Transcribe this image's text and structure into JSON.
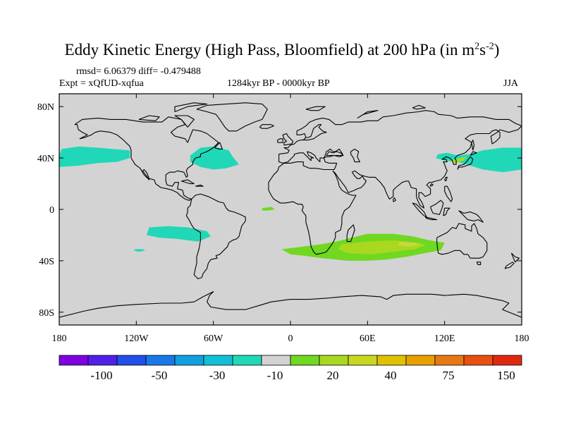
{
  "title": {
    "main": "Eddy Kinetic Energy (High Pass, Bloomfield) at 200 hPa (in m",
    "sup1": "2",
    "mid": "s",
    "sup2": "-2",
    "close": ")"
  },
  "stats": {
    "rmsd_diff": "rmsd= 6.06379 diff= -0.479488",
    "expt": "Expt = xQfUD-xqfua",
    "period": "1284kyr BP - 0000kyr BP",
    "season": "JJA"
  },
  "chart_data": {
    "type": "heatmap",
    "projection": "cylindrical-equidistant",
    "xlim": [
      -180,
      180
    ],
    "ylim": [
      -90,
      90
    ],
    "x_ticks": [
      {
        "value": -180,
        "label": "180"
      },
      {
        "value": -120,
        "label": "120W"
      },
      {
        "value": -60,
        "label": "60W"
      },
      {
        "value": 0,
        "label": "0"
      },
      {
        "value": 60,
        "label": "60E"
      },
      {
        "value": 120,
        "label": "120E"
      },
      {
        "value": 180,
        "label": "180"
      }
    ],
    "y_ticks": [
      {
        "value": 80,
        "label": "80N"
      },
      {
        "value": 40,
        "label": "40N"
      },
      {
        "value": 0,
        "label": "0"
      },
      {
        "value": -40,
        "label": "40S"
      },
      {
        "value": -80,
        "label": "80S"
      }
    ],
    "background_color": "#d3d3d3",
    "regions": [
      {
        "name": "north-pacific-east-anomaly",
        "color": "#20d8b8",
        "level": "-10",
        "polygon": [
          [
            -180,
            42
          ],
          [
            -178,
            47
          ],
          [
            -165,
            49
          ],
          [
            -150,
            48
          ],
          [
            -138,
            47
          ],
          [
            -125,
            46
          ],
          [
            -125,
            40
          ],
          [
            -135,
            37
          ],
          [
            -150,
            36
          ],
          [
            -165,
            34
          ],
          [
            -180,
            33
          ]
        ]
      },
      {
        "name": "north-atlantic-anomaly",
        "color": "#20d8b8",
        "level": "-10",
        "polygon": [
          [
            -78,
            37
          ],
          [
            -78,
            42
          ],
          [
            -70,
            48
          ],
          [
            -60,
            49
          ],
          [
            -48,
            46
          ],
          [
            -45,
            41
          ],
          [
            -40,
            35
          ],
          [
            -50,
            32
          ],
          [
            -60,
            31
          ],
          [
            -70,
            33
          ]
        ]
      },
      {
        "name": "north-pacific-west-anomaly",
        "color": "#20d8b8",
        "level": "-10",
        "polygon": [
          [
            115,
            43
          ],
          [
            122,
            44
          ],
          [
            130,
            42
          ],
          [
            140,
            43
          ],
          [
            150,
            46
          ],
          [
            165,
            48
          ],
          [
            180,
            48
          ],
          [
            180,
            31
          ],
          [
            165,
            29
          ],
          [
            150,
            31
          ],
          [
            140,
            34
          ],
          [
            130,
            37
          ],
          [
            120,
            38
          ],
          [
            113,
            40
          ]
        ]
      },
      {
        "name": "equatorial-atlantic-anomaly",
        "color": "#70d820",
        "level": "20",
        "polygon": [
          [
            -22,
            1
          ],
          [
            -15,
            2
          ],
          [
            -12,
            0
          ],
          [
            -18,
            -1
          ],
          [
            -22,
            -1
          ]
        ]
      },
      {
        "name": "south-pacific-anomaly",
        "color": "#20d8b8",
        "level": "-10",
        "polygon": [
          [
            -110,
            -14
          ],
          [
            -95,
            -13
          ],
          [
            -80,
            -14
          ],
          [
            -65,
            -17
          ],
          [
            -62,
            -21
          ],
          [
            -72,
            -25
          ],
          [
            -88,
            -23
          ],
          [
            -102,
            -22
          ],
          [
            -112,
            -20
          ]
        ]
      },
      {
        "name": "south-pacific-small-anomaly",
        "color": "#20d8b8",
        "level": "-10",
        "polygon": [
          [
            -121,
            -31
          ],
          [
            -115,
            -31
          ],
          [
            -113,
            -32
          ],
          [
            -118,
            -33
          ],
          [
            -122,
            -32
          ]
        ]
      },
      {
        "name": "south-indian-outer-anomaly",
        "color": "#70d820",
        "level": "20",
        "polygon": [
          [
            -7,
            -31
          ],
          [
            10,
            -29
          ],
          [
            25,
            -27
          ],
          [
            40,
            -24
          ],
          [
            60,
            -19
          ],
          [
            80,
            -19
          ],
          [
            95,
            -21
          ],
          [
            108,
            -24
          ],
          [
            120,
            -26
          ],
          [
            117,
            -32
          ],
          [
            110,
            -33
          ],
          [
            90,
            -37
          ],
          [
            75,
            -39
          ],
          [
            60,
            -40
          ],
          [
            45,
            -40
          ],
          [
            25,
            -38
          ],
          [
            10,
            -36
          ],
          [
            0,
            -35
          ]
        ]
      },
      {
        "name": "south-indian-inner-anomaly",
        "color": "#a8d820",
        "level": "30",
        "polygon": [
          [
            40,
            -27
          ],
          [
            60,
            -25
          ],
          [
            80,
            -24
          ],
          [
            100,
            -26
          ],
          [
            105,
            -28
          ],
          [
            97,
            -31
          ],
          [
            80,
            -33
          ],
          [
            62,
            -35
          ],
          [
            45,
            -34
          ],
          [
            37,
            -31
          ]
        ]
      },
      {
        "name": "south-indian-core-anomaly",
        "color": "#c8d840",
        "level": "40",
        "polygon": [
          [
            85,
            -25
          ],
          [
            97,
            -26
          ],
          [
            100,
            -28
          ],
          [
            92,
            -29
          ],
          [
            84,
            -28
          ]
        ]
      },
      {
        "name": "japan-sea-anomaly",
        "color": "#a8d820",
        "level": "30",
        "polygon": [
          [
            125,
            38
          ],
          [
            132,
            40
          ],
          [
            137,
            41
          ],
          [
            135,
            38
          ],
          [
            128,
            36
          ]
        ]
      }
    ],
    "colorbar": {
      "colors": [
        "#8000e0",
        "#5020e8",
        "#2050e8",
        "#1878e8",
        "#10a0e0",
        "#10c0d8",
        "#20d8b8",
        "#d3d3d3",
        "#70d820",
        "#a8d820",
        "#c8d820",
        "#e0c000",
        "#e8a000",
        "#e87810",
        "#e85010",
        "#e02810"
      ],
      "labels": [
        {
          "boundary": 2,
          "text": "-100"
        },
        {
          "boundary": 4,
          "text": "-50"
        },
        {
          "boundary": 6,
          "text": "-30"
        },
        {
          "boundary": 8,
          "text": "-10"
        },
        {
          "boundary": 10,
          "text": "20"
        },
        {
          "boundary": 12,
          "text": "40"
        },
        {
          "boundary": 14,
          "text": "75"
        },
        {
          "boundary": 16,
          "text": "150"
        }
      ]
    }
  }
}
